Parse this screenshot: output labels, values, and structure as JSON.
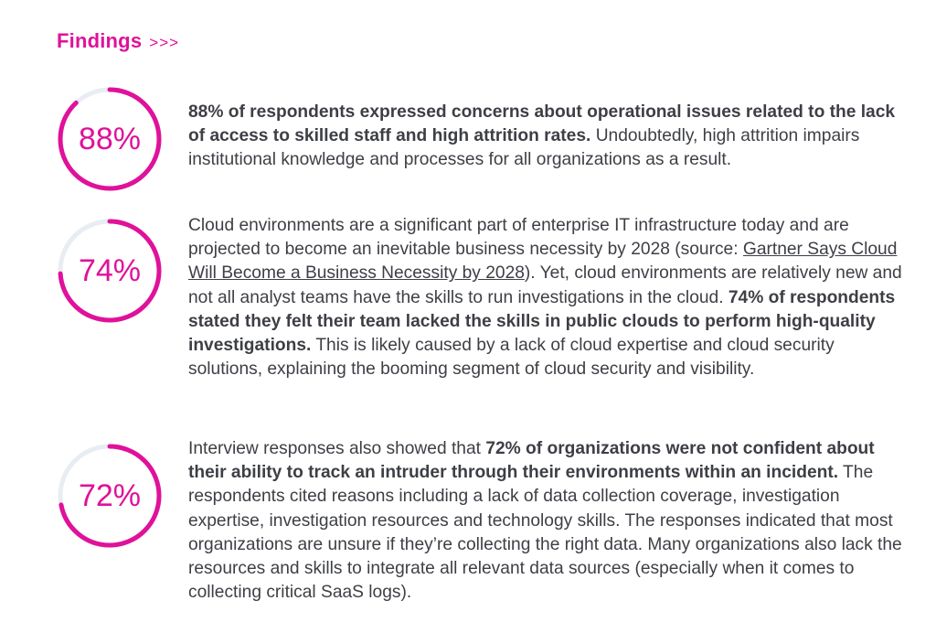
{
  "header": {
    "title": "Findings",
    "arrows": ">>>"
  },
  "colors": {
    "accent": "#e0119a",
    "track": "#e8edf3",
    "text": "#3d3f45"
  },
  "findings": [
    {
      "percent_label": "88%",
      "value": 88,
      "bold": "88% of respondents expressed concerns about operational issues related to the lack of access to skilled staff and high attrition rates.",
      "text": " Undoubtedly, high attrition impairs institutional knowledge and processes for all organizations as a result."
    },
    {
      "percent_label": "74%",
      "value": 74,
      "text1": "Cloud environments are a significant part of enterprise IT infrastructure today and are projected to become an inevitable business necessity by 2028 (source: ",
      "link": "Gartner Says Cloud Will Become a Business Necessity by 2028",
      "text2": "). Yet, cloud environments are relatively new and not all analyst teams have the skills to run investigations in the cloud. ",
      "bold": "74% of respondents stated they felt their team lacked the skills in public clouds to perform high-quality investigations.",
      "text3": " This is likely caused by a lack of cloud expertise and cloud security solutions, explaining the booming segment of cloud security and visibility."
    },
    {
      "percent_label": "72%",
      "value": 72,
      "text1": "Interview responses also showed that ",
      "bold": "72% of organizations were not confident about their ability to track an intruder through their environments within an incident.",
      "text2": " The respondents cited reasons including a lack of data collection coverage, investigation expertise, investigation resources and technology skills. The responses indicated that most organizations are unsure if they’re collecting the right data. Many organizations also lack the resources and skills to integrate all relevant data sources (especially when it comes to collecting critical SaaS logs)."
    }
  ]
}
